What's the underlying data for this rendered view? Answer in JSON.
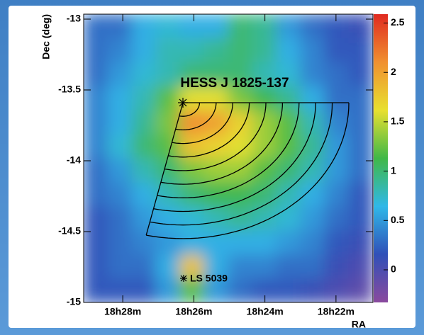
{
  "chart_data": {
    "type": "heatmap",
    "title": "HESS J 1825-137",
    "annotations": [
      "LS 5039"
    ],
    "x_label": "RA",
    "y_label": "Dec (deg)",
    "xlim": [
      29.1,
      20.96
    ],
    "ylim": [
      -15,
      -12.965
    ],
    "zlim": [
      -0.33,
      2.59
    ],
    "xticks": [
      {
        "value": 28,
        "label": "18h28m"
      },
      {
        "value": 26,
        "label": "18h26m"
      },
      {
        "value": 24,
        "label": "18h24m"
      },
      {
        "value": 22,
        "label": "18h22m"
      }
    ],
    "yticks": [
      -13,
      -13.5,
      -14,
      -14.5,
      -15
    ],
    "zticks": [
      0,
      0.5,
      1,
      1.5,
      2,
      2.5
    ],
    "colormap": [
      "#8a4a9e",
      "#3050b8",
      "#30b8e8",
      "#40b848",
      "#e8e030",
      "#f09030",
      "#e02a20"
    ],
    "x": [
      28.76,
      28.08,
      27.4,
      26.73,
      26.05,
      25.37,
      24.69,
      24.01,
      23.33,
      22.66,
      21.98,
      21.3
    ],
    "y": [
      -13.05,
      -13.22,
      -13.39,
      -13.56,
      -13.73,
      -13.9,
      -14.07,
      -14.24,
      -14.41,
      -14.58,
      -14.75,
      -14.92
    ],
    "z": [
      [
        0.3,
        0.3,
        0.6,
        0.7,
        0.6,
        0.6,
        1.0,
        0.9,
        0.5,
        0.3,
        0.2,
        0.1
      ],
      [
        0.3,
        0.4,
        0.6,
        0.8,
        0.8,
        0.9,
        1.0,
        0.9,
        0.6,
        0.4,
        0.2,
        0.2
      ],
      [
        0.3,
        0.5,
        0.7,
        0.8,
        1.0,
        1.0,
        1.0,
        0.8,
        0.7,
        0.4,
        0.3,
        0.2
      ],
      [
        0.4,
        0.6,
        0.8,
        1.2,
        1.6,
        1.6,
        1.3,
        1.1,
        0.9,
        0.6,
        0.3,
        0.3
      ],
      [
        0.4,
        0.6,
        0.9,
        1.3,
        2.1,
        2.0,
        1.7,
        1.4,
        1.2,
        0.8,
        0.4,
        0.3
      ],
      [
        0.4,
        0.7,
        1.0,
        1.2,
        1.8,
        1.7,
        1.6,
        1.4,
        1.2,
        0.9,
        0.5,
        0.3
      ],
      [
        0.3,
        0.5,
        0.8,
        1.0,
        1.3,
        1.4,
        1.4,
        1.2,
        1.0,
        0.8,
        0.5,
        0.3
      ],
      [
        0.3,
        0.4,
        0.6,
        0.8,
        1.0,
        1.1,
        1.1,
        1.0,
        0.8,
        0.6,
        0.4,
        0.2
      ],
      [
        0.2,
        0.3,
        0.5,
        0.6,
        0.7,
        0.8,
        0.9,
        0.8,
        0.7,
        0.5,
        0.3,
        0.2
      ],
      [
        0.2,
        0.3,
        0.4,
        0.5,
        0.6,
        0.6,
        0.6,
        0.6,
        0.5,
        0.4,
        0.2,
        0.1
      ],
      [
        0.2,
        0.3,
        0.3,
        0.6,
        1.8,
        0.6,
        0.4,
        0.4,
        0.3,
        0.3,
        0.1,
        0.0
      ],
      [
        0.2,
        0.2,
        0.2,
        0.5,
        1.2,
        0.5,
        0.3,
        0.2,
        0.2,
        0.1,
        0.0,
        -0.1
      ]
    ]
  }
}
